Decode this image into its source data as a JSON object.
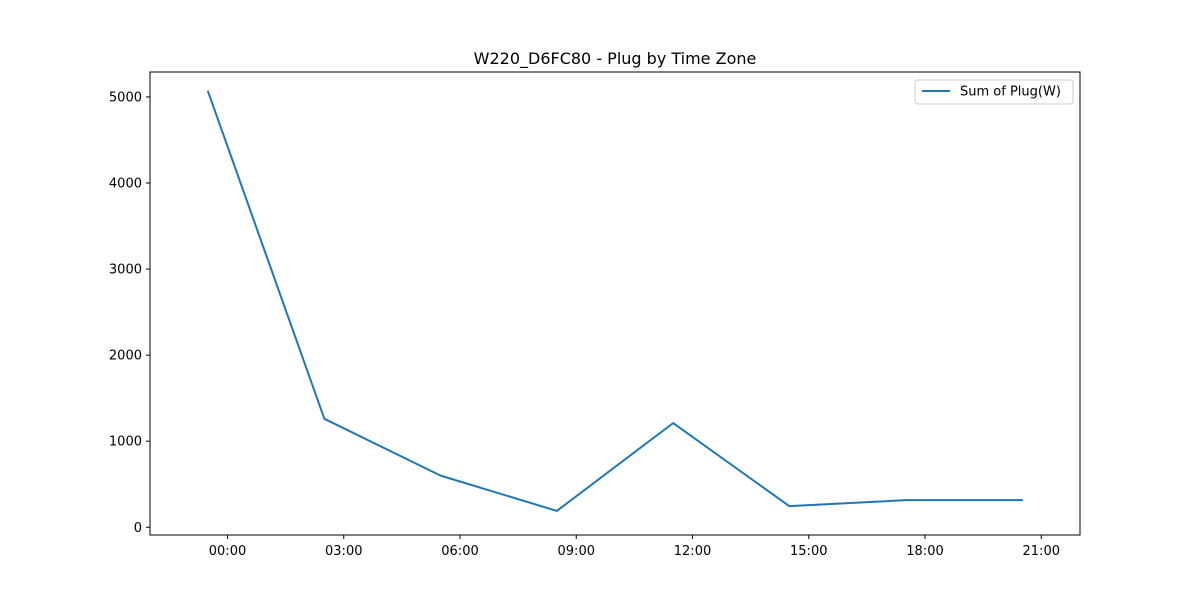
{
  "chart_data": {
    "type": "line",
    "title": "W220_D6FC80 - Plug by Time Zone",
    "xlabel": "",
    "ylabel": "",
    "x_ticks": [
      "00:00",
      "03:00",
      "06:00",
      "09:00",
      "12:00",
      "15:00",
      "18:00",
      "21:00"
    ],
    "x_tick_hours": [
      0,
      3,
      6,
      9,
      12,
      15,
      18,
      21
    ],
    "x_hours": [
      -0.5,
      2.5,
      5.5,
      8.5,
      11.5,
      14.5,
      17.5,
      20.5
    ],
    "xlim_hours": [
      -2.0,
      22.0
    ],
    "y_ticks": [
      0,
      1000,
      2000,
      3000,
      4000,
      5000
    ],
    "ylim": [
      -90,
      5290
    ],
    "grid": false,
    "legend_position": "top-right",
    "series": [
      {
        "name": "Sum of Plug(W)",
        "color": "#1f77b4",
        "values": [
          5060,
          1260,
          600,
          190,
          1210,
          245,
          315,
          315
        ]
      }
    ]
  }
}
